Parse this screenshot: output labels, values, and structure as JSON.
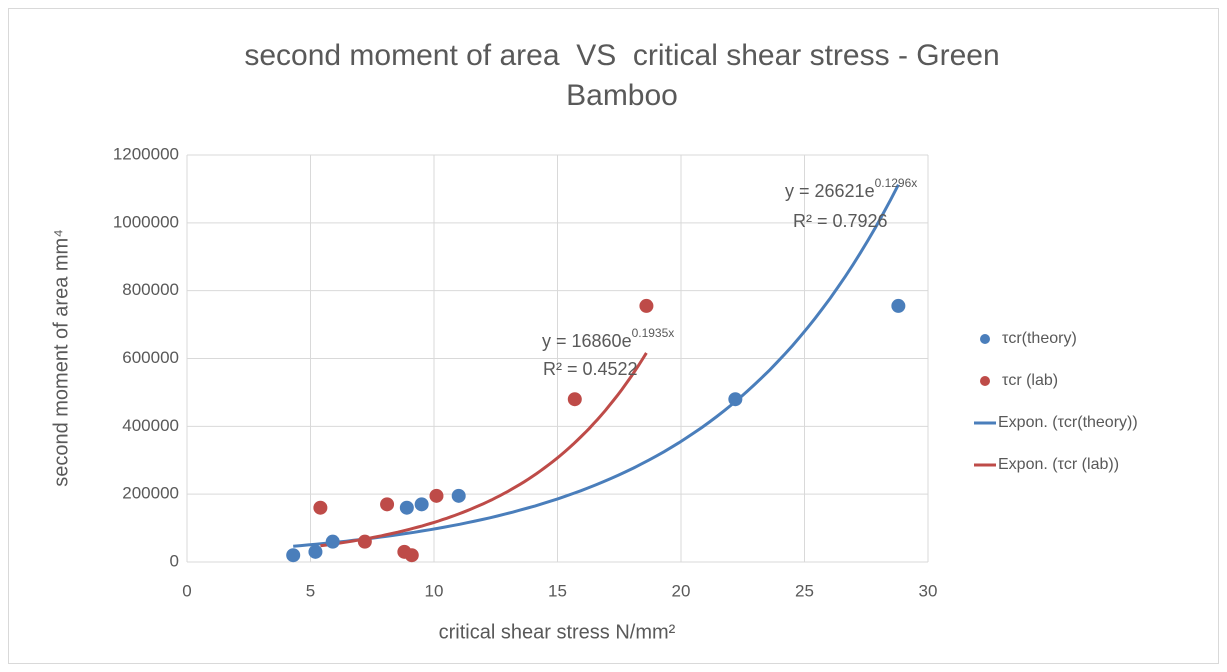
{
  "chart_data": {
    "type": "scatter",
    "title": [
      "second moment of area  VS  critical shear stress - Green",
      "Bamboo"
    ],
    "x_label": "critical shear stress N/mm²",
    "y_label": "second moment of area mm⁴",
    "xlim": [
      0,
      30
    ],
    "xticks": [
      0,
      5,
      10,
      15,
      20,
      25,
      30
    ],
    "ylim": [
      0,
      1200000
    ],
    "yticks": [
      0,
      200000,
      400000,
      600000,
      800000,
      1000000,
      1200000
    ],
    "grid": true,
    "legend": "right",
    "series": [
      {
        "name": "τcr(theory)",
        "color": "#4a7ebb",
        "x": [
          4.3,
          5.2,
          5.9,
          8.9,
          9.5,
          11,
          22.2,
          28.8
        ],
        "values": [
          20000,
          30000,
          60000,
          160000,
          170000,
          195000,
          480000,
          755000
        ]
      },
      {
        "name": "τcr (lab)",
        "color": "#be4b48",
        "x": [
          5.4,
          7.2,
          8.1,
          8.8,
          9.1,
          10.1,
          15.7,
          18.6
        ],
        "values": [
          160000,
          60000,
          170000,
          30000,
          20000,
          195000,
          480000,
          755000
        ]
      }
    ],
    "trendlines": [
      {
        "name": "Expon. (τcr(theory))",
        "color": "#4a7ebb",
        "a": 26621,
        "b": 0.1296,
        "equation": "y = 26621e",
        "exponent": "0.1296x",
        "r2": "R² = 0.7926"
      },
      {
        "name": "Expon. (τcr (lab))",
        "color": "#be4b48",
        "a": 16860,
        "b": 0.1935,
        "equation": "y = 16860e",
        "exponent": "0.1935x",
        "r2": "R² = 0.4522"
      }
    ]
  }
}
